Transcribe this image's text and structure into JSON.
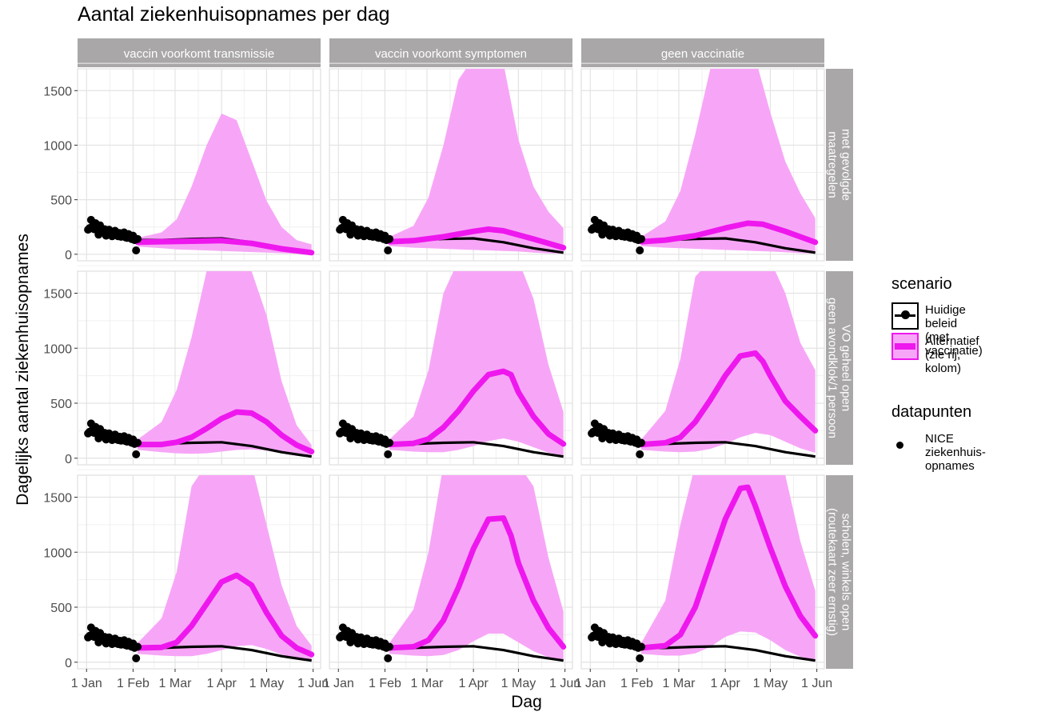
{
  "page": {
    "title": "Aantal ziekenhuisopnames per dag",
    "xlabel": "Dag",
    "ylabel": "Dagelijks aantal ziekenhuisopnames"
  },
  "legend": {
    "scenario_title": "scenario",
    "scenario_items": [
      {
        "label": "Huidige beleid\n (met vaccinatie)",
        "color": "#000000"
      },
      {
        "label": "Alternatief\n (zie rij, kolom)",
        "color": "#ee18ee"
      }
    ],
    "data_title": "datapunten",
    "data_items": [
      {
        "label": "NICE ziekenhuis-\n opnames",
        "color": "#000000"
      }
    ]
  },
  "colors": {
    "band": "#f7a6f7",
    "alternative": "#ee18ee",
    "baseline": "#000000",
    "strip": "#a9a7a8",
    "panel_bg": "#ffffff",
    "grid": "#e3e3e3"
  },
  "chart_data": {
    "type": "line",
    "facet_columns": [
      "vaccin voorkomt transmissie",
      "vaccin voorkomt symptomen",
      "geen vaccinatie"
    ],
    "facet_rows": [
      "met gevolgde\nmaatregelen",
      "VO geheel open\ngeen avondklok/1 persoon",
      "scholen, winkels open\n(routekaart zeer ernstig)"
    ],
    "x_ticks": [
      "1 Jan",
      "1 Feb",
      "1 Mar",
      "1 Apr",
      "1 May",
      "1 Jun"
    ],
    "x_tick_days": [
      0,
      31,
      59,
      90,
      120,
      151
    ],
    "y_ticks": [
      0,
      500,
      1000,
      1500
    ],
    "ylim": [
      -60,
      1700
    ],
    "x_range_days": [
      -6,
      156
    ],
    "grid": true,
    "legend_position": "right",
    "baseline_series": {
      "name": "Huidige beleid (met vaccinatie)",
      "x": [
        34,
        50,
        70,
        90,
        110,
        130,
        150
      ],
      "y": [
        130,
        130,
        140,
        145,
        110,
        55,
        15
      ]
    },
    "nice_datapoints": {
      "name": "NICE ziekenhuis-opnames",
      "x": [
        1,
        2,
        3,
        4,
        5,
        6,
        7,
        8,
        9,
        10,
        11,
        12,
        13,
        14,
        15,
        16,
        17,
        18,
        19,
        20,
        21,
        22,
        23,
        24,
        25,
        26,
        27,
        28,
        29,
        30,
        31,
        32,
        33,
        34
      ],
      "y": [
        225,
        240,
        315,
        260,
        230,
        285,
        220,
        180,
        265,
        215,
        200,
        230,
        170,
        190,
        225,
        200,
        165,
        180,
        215,
        175,
        165,
        195,
        160,
        170,
        200,
        155,
        150,
        185,
        150,
        140,
        170,
        130,
        35,
        140
      ]
    },
    "panels": [
      {
        "row": 0,
        "col": 0,
        "alt_x": [
          34,
          50,
          70,
          90,
          110,
          130,
          150
        ],
        "alt_y": [
          110,
          115,
          120,
          125,
          100,
          50,
          15
        ],
        "band_x": [
          34,
          50,
          60,
          70,
          80,
          90,
          100,
          110,
          120,
          130,
          140,
          150
        ],
        "band_lo": [
          70,
          55,
          45,
          40,
          35,
          30,
          25,
          20,
          15,
          10,
          5,
          3
        ],
        "band_hi": [
          150,
          200,
          320,
          620,
          1000,
          1290,
          1230,
          860,
          490,
          250,
          130,
          90
        ]
      },
      {
        "row": 0,
        "col": 1,
        "alt_x": [
          34,
          50,
          70,
          90,
          100,
          110,
          130,
          150
        ],
        "alt_y": [
          115,
          125,
          160,
          210,
          230,
          215,
          140,
          60
        ],
        "band_x": [
          34,
          50,
          60,
          70,
          80,
          90,
          100,
          110,
          120,
          130,
          140,
          150
        ],
        "band_lo": [
          75,
          60,
          55,
          50,
          45,
          40,
          35,
          30,
          25,
          15,
          8,
          5
        ],
        "band_hi": [
          160,
          260,
          520,
          1000,
          1600,
          1800,
          1800,
          1750,
          1050,
          620,
          390,
          240
        ]
      },
      {
        "row": 0,
        "col": 2,
        "alt_x": [
          34,
          50,
          70,
          90,
          105,
          115,
          130,
          150
        ],
        "alt_y": [
          115,
          130,
          170,
          240,
          285,
          275,
          210,
          110
        ],
        "band_x": [
          34,
          50,
          60,
          70,
          80,
          90,
          100,
          110,
          120,
          130,
          140,
          150
        ],
        "band_lo": [
          75,
          60,
          55,
          50,
          45,
          40,
          35,
          30,
          25,
          18,
          10,
          6
        ],
        "band_hi": [
          160,
          300,
          580,
          1100,
          1700,
          1800,
          1800,
          1800,
          1300,
          850,
          560,
          330
        ]
      },
      {
        "row": 1,
        "col": 0,
        "alt_x": [
          34,
          50,
          60,
          70,
          80,
          90,
          100,
          110,
          120,
          130,
          140,
          150
        ],
        "alt_y": [
          125,
          125,
          145,
          190,
          270,
          360,
          420,
          410,
          330,
          210,
          120,
          60
        ],
        "band_x": [
          34,
          50,
          60,
          70,
          80,
          90,
          100,
          110,
          120,
          130,
          140,
          150
        ],
        "band_lo": [
          75,
          55,
          45,
          40,
          45,
          60,
          75,
          80,
          70,
          45,
          22,
          10
        ],
        "band_hi": [
          170,
          330,
          620,
          1100,
          1700,
          1800,
          1800,
          1700,
          1300,
          700,
          300,
          120
        ]
      },
      {
        "row": 1,
        "col": 1,
        "alt_x": [
          34,
          50,
          60,
          70,
          80,
          90,
          100,
          110,
          115,
          120,
          130,
          140,
          150
        ],
        "alt_y": [
          125,
          135,
          175,
          280,
          430,
          610,
          760,
          790,
          760,
          600,
          380,
          220,
          130
        ],
        "band_x": [
          34,
          50,
          60,
          70,
          80,
          90,
          100,
          110,
          120,
          130,
          140,
          150
        ],
        "band_lo": [
          75,
          60,
          55,
          55,
          75,
          110,
          155,
          180,
          150,
          100,
          50,
          25
        ],
        "band_hi": [
          170,
          380,
          800,
          1500,
          1800,
          1800,
          1800,
          1800,
          1800,
          1450,
          850,
          420
        ]
      },
      {
        "row": 1,
        "col": 2,
        "alt_x": [
          34,
          50,
          60,
          70,
          80,
          90,
          100,
          110,
          115,
          120,
          130,
          140,
          150
        ],
        "alt_y": [
          125,
          140,
          190,
          330,
          530,
          750,
          930,
          955,
          880,
          750,
          520,
          380,
          250
        ],
        "band_x": [
          34,
          50,
          60,
          70,
          80,
          90,
          100,
          110,
          120,
          130,
          140,
          150
        ],
        "band_lo": [
          75,
          60,
          55,
          60,
          85,
          130,
          190,
          230,
          210,
          150,
          90,
          50
        ],
        "band_hi": [
          170,
          430,
          900,
          1650,
          1800,
          1800,
          1800,
          1800,
          1800,
          1500,
          1050,
          800
        ]
      },
      {
        "row": 2,
        "col": 0,
        "alt_x": [
          34,
          50,
          60,
          70,
          80,
          90,
          100,
          110,
          120,
          130,
          140,
          150
        ],
        "alt_y": [
          130,
          135,
          180,
          330,
          530,
          730,
          790,
          700,
          450,
          240,
          130,
          70
        ],
        "band_x": [
          34,
          50,
          60,
          70,
          80,
          90,
          100,
          110,
          120,
          130,
          140,
          150
        ],
        "band_lo": [
          75,
          60,
          55,
          55,
          75,
          110,
          145,
          155,
          120,
          70,
          35,
          15
        ],
        "band_hi": [
          175,
          400,
          820,
          1600,
          1800,
          1800,
          1800,
          1800,
          1250,
          700,
          330,
          150
        ]
      },
      {
        "row": 2,
        "col": 1,
        "alt_x": [
          34,
          50,
          60,
          70,
          80,
          90,
          100,
          110,
          115,
          120,
          130,
          140,
          150
        ],
        "alt_y": [
          130,
          140,
          200,
          380,
          680,
          1030,
          1300,
          1310,
          1150,
          900,
          560,
          310,
          140
        ],
        "band_x": [
          34,
          50,
          60,
          70,
          80,
          90,
          100,
          110,
          120,
          130,
          140,
          150
        ],
        "band_lo": [
          75,
          60,
          55,
          65,
          110,
          190,
          260,
          260,
          180,
          100,
          45,
          20
        ],
        "band_hi": [
          175,
          480,
          1000,
          1800,
          1800,
          1800,
          1800,
          1800,
          1800,
          1600,
          950,
          460
        ]
      },
      {
        "row": 2,
        "col": 2,
        "alt_x": [
          34,
          50,
          60,
          70,
          80,
          90,
          100,
          105,
          110,
          120,
          130,
          140,
          150
        ],
        "alt_y": [
          130,
          150,
          250,
          500,
          900,
          1300,
          1580,
          1590,
          1420,
          1040,
          690,
          420,
          240
        ],
        "band_x": [
          34,
          50,
          60,
          70,
          80,
          90,
          100,
          110,
          120,
          130,
          140,
          150
        ],
        "band_lo": [
          75,
          60,
          60,
          80,
          140,
          230,
          280,
          270,
          200,
          110,
          50,
          20
        ],
        "band_hi": [
          175,
          560,
          1250,
          1800,
          1800,
          1800,
          1800,
          1800,
          1800,
          1700,
          1100,
          650
        ]
      }
    ]
  }
}
